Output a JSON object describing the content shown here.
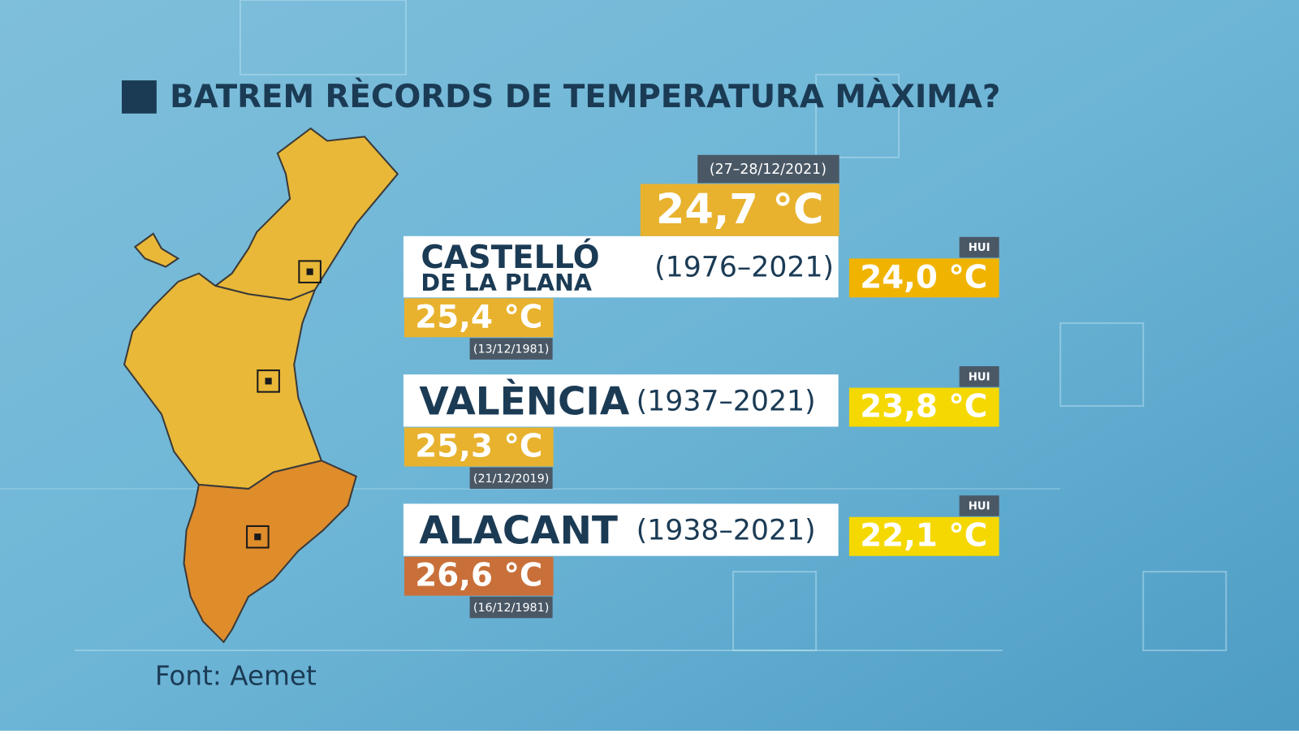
{
  "title": "BATREM RÈCORDS DE TEMPERATURA MÀXIMA?",
  "cities": [
    {
      "name": [
        "CASTELLÓ",
        "DE LA PLANA"
      ],
      "period": "(1976–2021)",
      "record": "25,4 °C",
      "record_date": "(13/12/1981)",
      "today_label": "HUI",
      "today": "24,0 °C",
      "new_record": "24,7 °C",
      "new_record_date": "(27–28/12/2021)"
    },
    {
      "name": [
        "VALÈNCIA"
      ],
      "period": "(1937–2021)",
      "record": "25,3 °C",
      "record_date": "(21/12/2019)",
      "today_label": "HUI",
      "today": "23,8 °C"
    },
    {
      "name": [
        "ALACANT"
      ],
      "period": "(1938–2021)",
      "record": "26,6 °C",
      "record_date": "(16/12/1981)",
      "today_label": "HUI",
      "today": "22,1 °C"
    }
  ],
  "source": "Font: Aemet"
}
